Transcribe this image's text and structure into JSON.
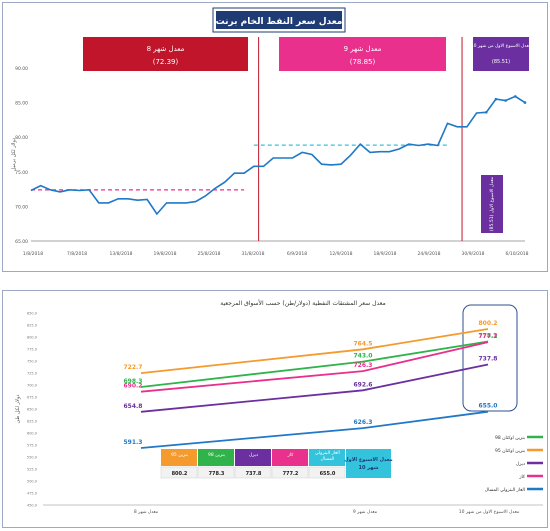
{
  "top_chart": {
    "title": "معدل سعر النفط الخام برنت",
    "ylabel": "دولار لكل برميل",
    "ylim": [
      65,
      90
    ],
    "yticks": [
      "90.00",
      "85.00",
      "80.00",
      "75.00",
      "70.00",
      "65.00"
    ],
    "ytick_values": [
      90,
      85,
      80,
      75,
      70,
      65
    ],
    "xtick_labels": [
      "1/8/2018",
      "7/8/2018",
      "13/8/2018",
      "19/8/2018",
      "25/8/2018",
      "31/8/2018",
      "6/9/2018",
      "12/9/2018",
      "18/9/2018",
      "24/9/2018",
      "30/9/2018",
      "6/10/2018"
    ],
    "month_boxes": [
      {
        "line1": "معدل شهر 8",
        "line2": "(72.39)",
        "color": "#c0152a"
      },
      {
        "line1": "معدل شهر 9",
        "line2": "(78.85)",
        "color": "#e8308c"
      },
      {
        "line1": "معدل الاسبوع الاول من شهر 10",
        "line2": "(85.51)",
        "color": "#6b2fa0"
      }
    ],
    "vertical_note": "معدل الاسبوع الاول (85.51)",
    "avg_lines": [
      {
        "value": 72.39,
        "from": 0,
        "to": 22,
        "color": "#e8308c"
      },
      {
        "value": 78.85,
        "from": 23,
        "to": 43,
        "color": "#33c3dc"
      }
    ],
    "series_color": "#1f78c8",
    "values": [
      72.3,
      73.0,
      72.4,
      72.1,
      72.4,
      72.3,
      72.4,
      70.5,
      70.5,
      71.1,
      71.1,
      70.9,
      71.0,
      68.9,
      70.5,
      70.5,
      70.5,
      70.7,
      71.5,
      72.6,
      73.5,
      74.8,
      74.8,
      75.8,
      75.8,
      77.0,
      77.0,
      77.0,
      77.8,
      77.5,
      76.1,
      76.0,
      76.1,
      77.4,
      79.0,
      77.8,
      77.9,
      77.9,
      78.3,
      79.0,
      78.8,
      79.0,
      78.8,
      82.0,
      81.5,
      81.5,
      83.5,
      83.6,
      85.5,
      85.3,
      85.9,
      85.0
    ]
  },
  "bottom_chart": {
    "title": "معدل سعر المشتقات النفطية (دولار/طن) حسب الأسواق المرجعية",
    "ylabel": "دولار لكل طن",
    "ylim": [
      500,
      850
    ],
    "yticks": [
      "850.0",
      "825.0",
      "800.0",
      "775.0",
      "750.0",
      "725.0",
      "700.0",
      "675.0",
      "650.0",
      "625.0",
      "600.0",
      "575.0",
      "550.0",
      "525.0",
      "500.0",
      "475.0",
      "450.0"
    ],
    "categories": [
      "معدل شهر 8",
      "معدل شهر 9",
      "معدل الاسبوع الاول من شهر 10"
    ],
    "series": [
      {
        "name": "بنزين اوكتان 95",
        "color": "#f59a2c",
        "values": [
          722.7,
          764.5,
          800.2
        ]
      },
      {
        "name": "بنزين اوكتان 98",
        "color": "#2fb34a",
        "values": [
          698.3,
          743.0,
          778.3
        ]
      },
      {
        "name": "كاز",
        "color": "#e8308c",
        "values": [
          690.2,
          726.3,
          777.2
        ]
      },
      {
        "name": "ديزل",
        "color": "#6b2fa0",
        "values": [
          654.8,
          692.6,
          737.8
        ]
      },
      {
        "name": "الغاز البترولي المسال",
        "color": "#1f78c8",
        "values": [
          591.3,
          626.3,
          655.0
        ]
      }
    ],
    "table": {
      "header": "معدل الاسبوع الاول شهر 10",
      "columns": [
        {
          "label": "بنزين 95",
          "value": "800.2",
          "color": "#f59a2c"
        },
        {
          "label": "بنزين 98",
          "value": "778.3",
          "color": "#2fb34a"
        },
        {
          "label": "ديزل",
          "value": "737.8",
          "color": "#6b2fa0"
        },
        {
          "label": "كاز",
          "value": "777.2",
          "color": "#e8308c"
        },
        {
          "label": "الغاز البترولي المسال",
          "value": "655.0",
          "color": "#33c3dc"
        }
      ]
    }
  }
}
